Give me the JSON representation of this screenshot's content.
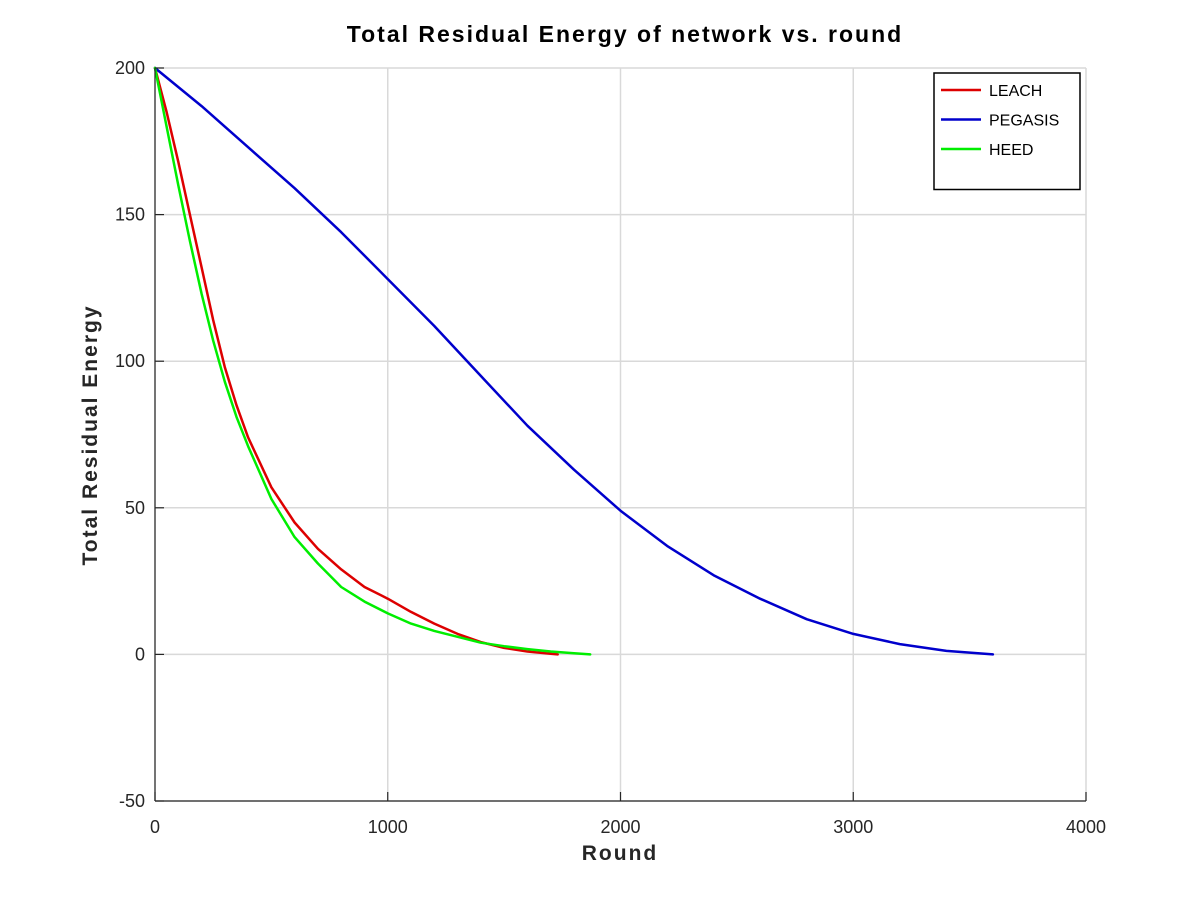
{
  "colors": {
    "background": "#ffffff",
    "grid": "#d9d9d9",
    "axis": "#262626",
    "LEACH": "#dd0000",
    "PEGASIS": "#0000cc",
    "HEED": "#00ee00"
  },
  "chart_data": {
    "type": "line",
    "title": "Total Residual Energy of network vs. round",
    "xlabel": "Round",
    "ylabel": "Total Residual Energy",
    "xlim": [
      0,
      4000
    ],
    "ylim": [
      -50,
      200
    ],
    "xticks": [
      0,
      1000,
      2000,
      3000,
      4000
    ],
    "yticks": [
      -50,
      0,
      50,
      100,
      150,
      200
    ],
    "grid": true,
    "legend_position": "top-right",
    "series": [
      {
        "name": "LEACH",
        "color": "#dd0000",
        "x": [
          0,
          50,
          100,
          150,
          200,
          250,
          300,
          350,
          400,
          500,
          600,
          700,
          800,
          900,
          1000,
          1100,
          1200,
          1300,
          1400,
          1500,
          1600,
          1700,
          1730
        ],
        "y": [
          200,
          185,
          168,
          150,
          132,
          114,
          98,
          85,
          74,
          57,
          45,
          36,
          29,
          23,
          19,
          14.5,
          10.5,
          7,
          4.2,
          2.2,
          1,
          0.2,
          0
        ]
      },
      {
        "name": "PEGASIS",
        "color": "#0000cc",
        "x": [
          0,
          200,
          400,
          600,
          800,
          1000,
          1200,
          1400,
          1600,
          1800,
          2000,
          2200,
          2400,
          2600,
          2800,
          3000,
          3200,
          3400,
          3600
        ],
        "y": [
          200,
          187,
          173,
          159,
          144,
          128,
          112,
          95,
          78,
          63,
          49,
          37,
          27,
          19,
          12,
          7,
          3.5,
          1.2,
          0
        ]
      },
      {
        "name": "HEED",
        "color": "#00ee00",
        "x": [
          0,
          50,
          100,
          150,
          200,
          250,
          300,
          350,
          400,
          500,
          600,
          700,
          800,
          900,
          1000,
          1100,
          1200,
          1300,
          1400,
          1500,
          1600,
          1700,
          1800,
          1870
        ],
        "y": [
          200,
          180,
          160,
          141,
          123,
          107,
          93,
          81,
          71,
          53,
          40,
          31,
          23,
          18,
          14,
          10.5,
          8,
          6,
          4,
          2.8,
          1.8,
          1,
          0.4,
          0
        ]
      }
    ]
  }
}
